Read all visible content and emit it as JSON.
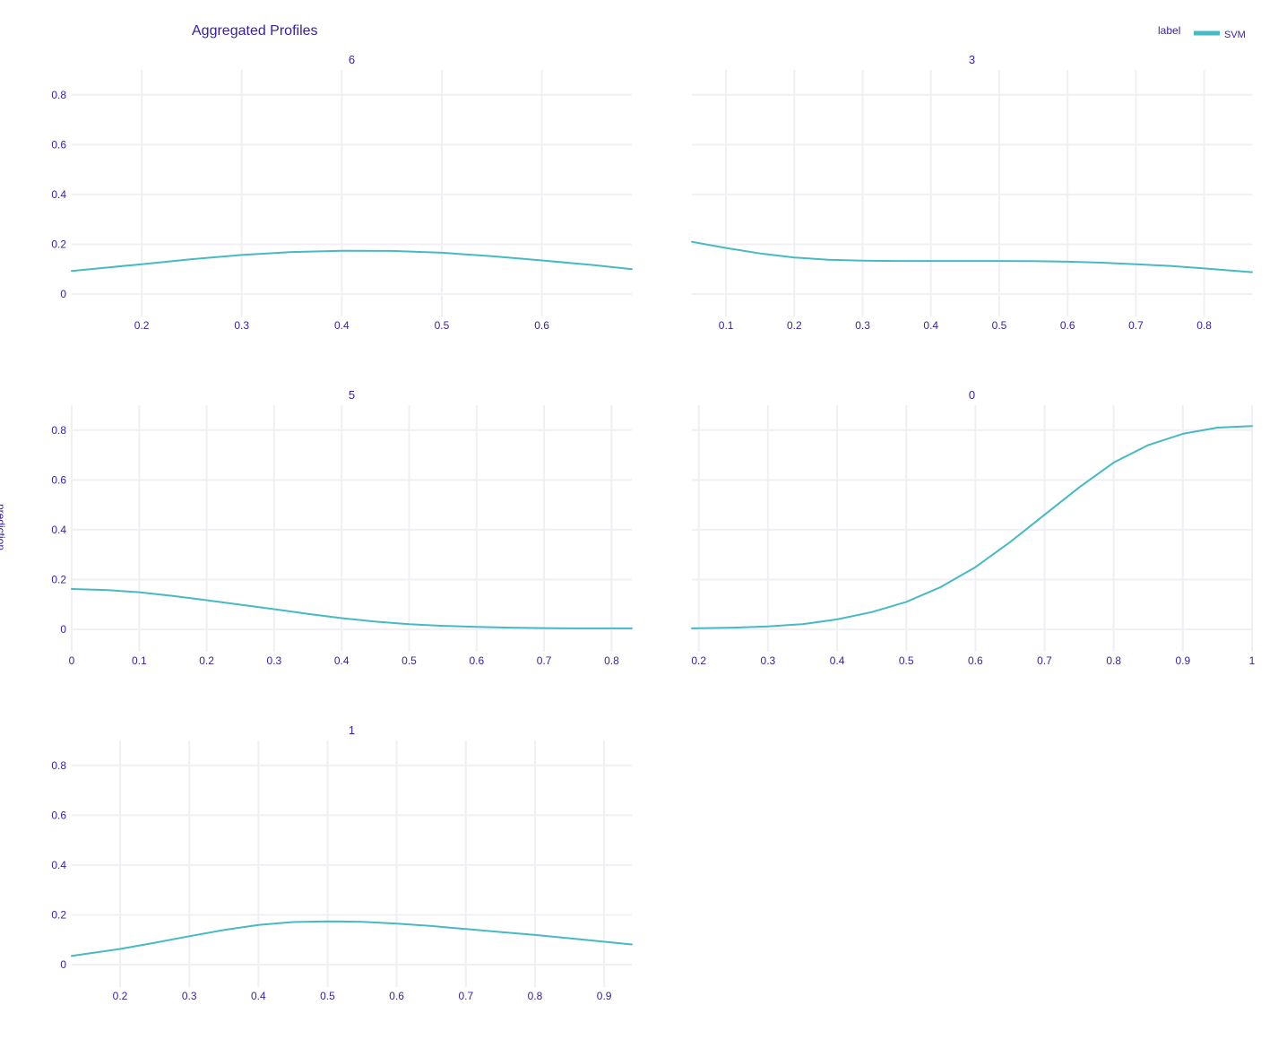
{
  "title": "Aggregated Profiles",
  "ylabel": "prediction",
  "legend": {
    "title": "label",
    "items": [
      {
        "name": "SVM",
        "color": "#46bac2"
      }
    ]
  },
  "colors": {
    "text": "#371ea3",
    "grid": "#f0f0f4",
    "series": "#46bac2",
    "background": "#ffffff"
  },
  "chart_data": [
    {
      "type": "line",
      "panel": "6",
      "series": [
        {
          "name": "SVM",
          "x": [
            0.13,
            0.2,
            0.25,
            0.3,
            0.35,
            0.4,
            0.45,
            0.5,
            0.55,
            0.6,
            0.65,
            0.69
          ],
          "y": [
            0.093,
            0.12,
            0.14,
            0.157,
            0.169,
            0.174,
            0.173,
            0.166,
            0.152,
            0.135,
            0.117,
            0.1
          ]
        }
      ],
      "xlim": [
        0.13,
        0.69
      ],
      "ylim": [
        -0.09,
        0.9
      ],
      "xticks": [
        0.2,
        0.3,
        0.4,
        0.5,
        0.6
      ],
      "xtick_labels": [
        "0.2",
        "0.3",
        "0.4",
        "0.5",
        "0.6"
      ],
      "yticks": [
        0,
        0.2,
        0.4,
        0.6,
        0.8
      ],
      "ytick_labels": [
        "0",
        "0.2",
        "0.4",
        "0.6",
        "0.8"
      ],
      "grid": true
    },
    {
      "type": "line",
      "panel": "3",
      "series": [
        {
          "name": "SVM",
          "x": [
            0.05,
            0.1,
            0.15,
            0.2,
            0.25,
            0.3,
            0.35,
            0.4,
            0.45,
            0.5,
            0.55,
            0.6,
            0.65,
            0.7,
            0.75,
            0.8,
            0.87
          ],
          "y": [
            0.21,
            0.185,
            0.163,
            0.147,
            0.138,
            0.134,
            0.133,
            0.133,
            0.133,
            0.133,
            0.132,
            0.13,
            0.126,
            0.12,
            0.113,
            0.103,
            0.088
          ]
        }
      ],
      "xlim": [
        0.05,
        0.87
      ],
      "ylim": [
        -0.09,
        0.9
      ],
      "xticks": [
        0.1,
        0.2,
        0.3,
        0.4,
        0.5,
        0.6,
        0.7,
        0.8
      ],
      "xtick_labels": [
        "0.1",
        "0.2",
        "0.3",
        "0.4",
        "0.5",
        "0.6",
        "0.7",
        "0.8"
      ],
      "yticks": [
        0,
        0.2,
        0.4,
        0.6,
        0.8
      ],
      "ytick_labels": [
        "0",
        "0.2",
        "0.4",
        "0.6",
        "0.8"
      ],
      "grid": true
    },
    {
      "type": "line",
      "panel": "5",
      "series": [
        {
          "name": "SVM",
          "x": [
            0,
            0.05,
            0.1,
            0.15,
            0.2,
            0.25,
            0.3,
            0.35,
            0.4,
            0.45,
            0.5,
            0.55,
            0.6,
            0.65,
            0.7,
            0.75,
            0.8,
            0.83
          ],
          "y": [
            0.162,
            0.158,
            0.149,
            0.134,
            0.117,
            0.099,
            0.081,
            0.062,
            0.045,
            0.031,
            0.021,
            0.014,
            0.01,
            0.007,
            0.005,
            0.004,
            0.004,
            0.004
          ]
        }
      ],
      "xlim": [
        0,
        0.83
      ],
      "ylim": [
        -0.09,
        0.9
      ],
      "xticks": [
        0,
        0.1,
        0.2,
        0.3,
        0.4,
        0.5,
        0.6,
        0.7,
        0.8
      ],
      "xtick_labels": [
        "0",
        "0.1",
        "0.2",
        "0.3",
        "0.4",
        "0.5",
        "0.6",
        "0.7",
        "0.8"
      ],
      "yticks": [
        0,
        0.2,
        0.4,
        0.6,
        0.8
      ],
      "ytick_labels": [
        "0",
        "0.2",
        "0.4",
        "0.6",
        "0.8"
      ],
      "grid": true
    },
    {
      "type": "line",
      "panel": "0",
      "series": [
        {
          "name": "SVM",
          "x": [
            0.19,
            0.25,
            0.3,
            0.35,
            0.4,
            0.45,
            0.5,
            0.55,
            0.6,
            0.65,
            0.7,
            0.75,
            0.8,
            0.85,
            0.9,
            0.95,
            1.0
          ],
          "y": [
            0.004,
            0.007,
            0.012,
            0.021,
            0.04,
            0.069,
            0.11,
            0.17,
            0.25,
            0.35,
            0.46,
            0.57,
            0.67,
            0.74,
            0.785,
            0.81,
            0.816
          ]
        }
      ],
      "xlim": [
        0.19,
        1.0
      ],
      "ylim": [
        -0.09,
        0.9
      ],
      "xticks": [
        0.2,
        0.3,
        0.4,
        0.5,
        0.6,
        0.7,
        0.8,
        0.9,
        1.0
      ],
      "xtick_labels": [
        "0.2",
        "0.3",
        "0.4",
        "0.5",
        "0.6",
        "0.7",
        "0.8",
        "0.9",
        "1"
      ],
      "yticks": [
        0,
        0.2,
        0.4,
        0.6,
        0.8
      ],
      "ytick_labels": [
        "0",
        "0.2",
        "0.4",
        "0.6",
        "0.8"
      ],
      "grid": true
    },
    {
      "type": "line",
      "panel": "1",
      "series": [
        {
          "name": "SVM",
          "x": [
            0.13,
            0.2,
            0.25,
            0.3,
            0.35,
            0.4,
            0.45,
            0.5,
            0.55,
            0.6,
            0.65,
            0.7,
            0.75,
            0.8,
            0.85,
            0.94
          ],
          "y": [
            0.035,
            0.063,
            0.088,
            0.114,
            0.139,
            0.159,
            0.171,
            0.174,
            0.172,
            0.165,
            0.155,
            0.143,
            0.131,
            0.119,
            0.106,
            0.081
          ]
        }
      ],
      "xlim": [
        0.13,
        0.94
      ],
      "ylim": [
        -0.09,
        0.9
      ],
      "xticks": [
        0.2,
        0.3,
        0.4,
        0.5,
        0.6,
        0.7,
        0.8,
        0.9
      ],
      "xtick_labels": [
        "0.2",
        "0.3",
        "0.4",
        "0.5",
        "0.6",
        "0.7",
        "0.8",
        "0.9"
      ],
      "yticks": [
        0,
        0.2,
        0.4,
        0.6,
        0.8
      ],
      "ytick_labels": [
        "0",
        "0.2",
        "0.4",
        "0.6",
        "0.8"
      ],
      "grid": true
    }
  ]
}
